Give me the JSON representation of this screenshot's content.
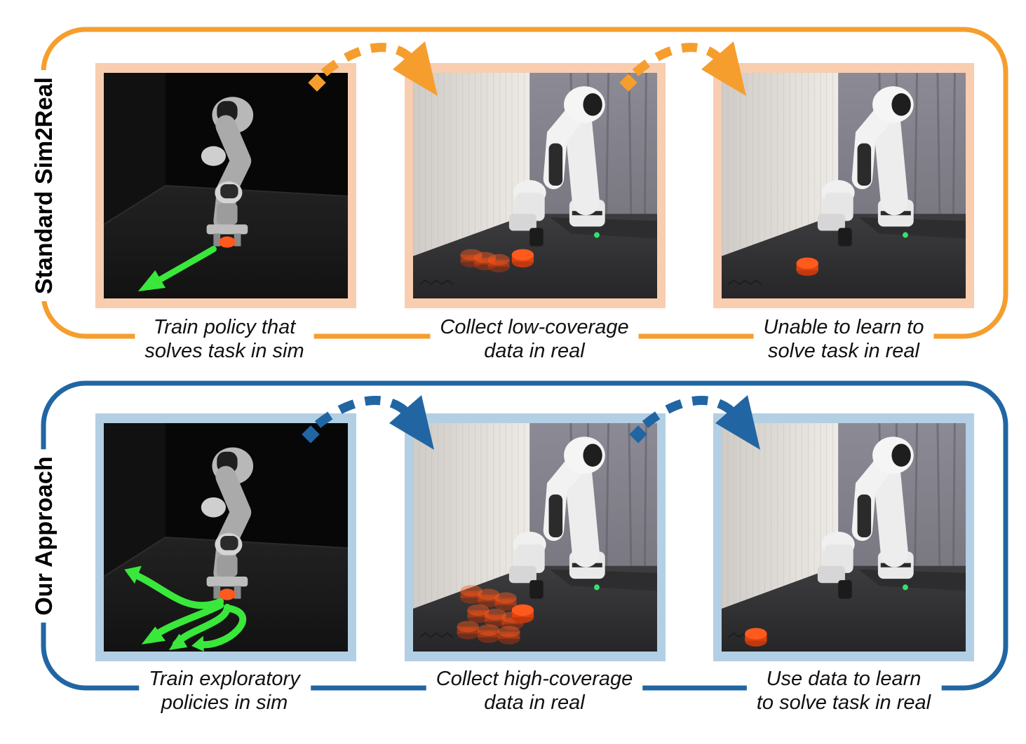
{
  "colors": {
    "standard_accent": "#f59e2e",
    "standard_panel_border": "#f8cdb0",
    "approach_accent": "#2166a3",
    "approach_panel_border": "#b3cfe4",
    "trajectory_green": "#39e83a",
    "puck_orange": "#ff5a1e"
  },
  "rows": [
    {
      "id": "standard",
      "label": "Standard Sim2Real",
      "panels": [
        {
          "scene": "sim-robot",
          "caption_lines": [
            "Train policy that",
            "solves task in sim"
          ]
        },
        {
          "scene": "real-robot",
          "caption_lines": [
            "Collect low-coverage",
            "data in real"
          ]
        },
        {
          "scene": "real-robot",
          "caption_lines": [
            "Unable to learn to",
            "solve task in real"
          ]
        }
      ]
    },
    {
      "id": "approach",
      "label": "Our Approach",
      "panels": [
        {
          "scene": "sim-robot",
          "caption_lines": [
            "Train exploratory",
            "policies in sim"
          ]
        },
        {
          "scene": "real-robot",
          "caption_lines": [
            "Collect high-coverage",
            "data in real"
          ]
        },
        {
          "scene": "real-robot",
          "caption_lines": [
            "Use data to learn",
            "to solve task in real"
          ]
        }
      ]
    }
  ]
}
